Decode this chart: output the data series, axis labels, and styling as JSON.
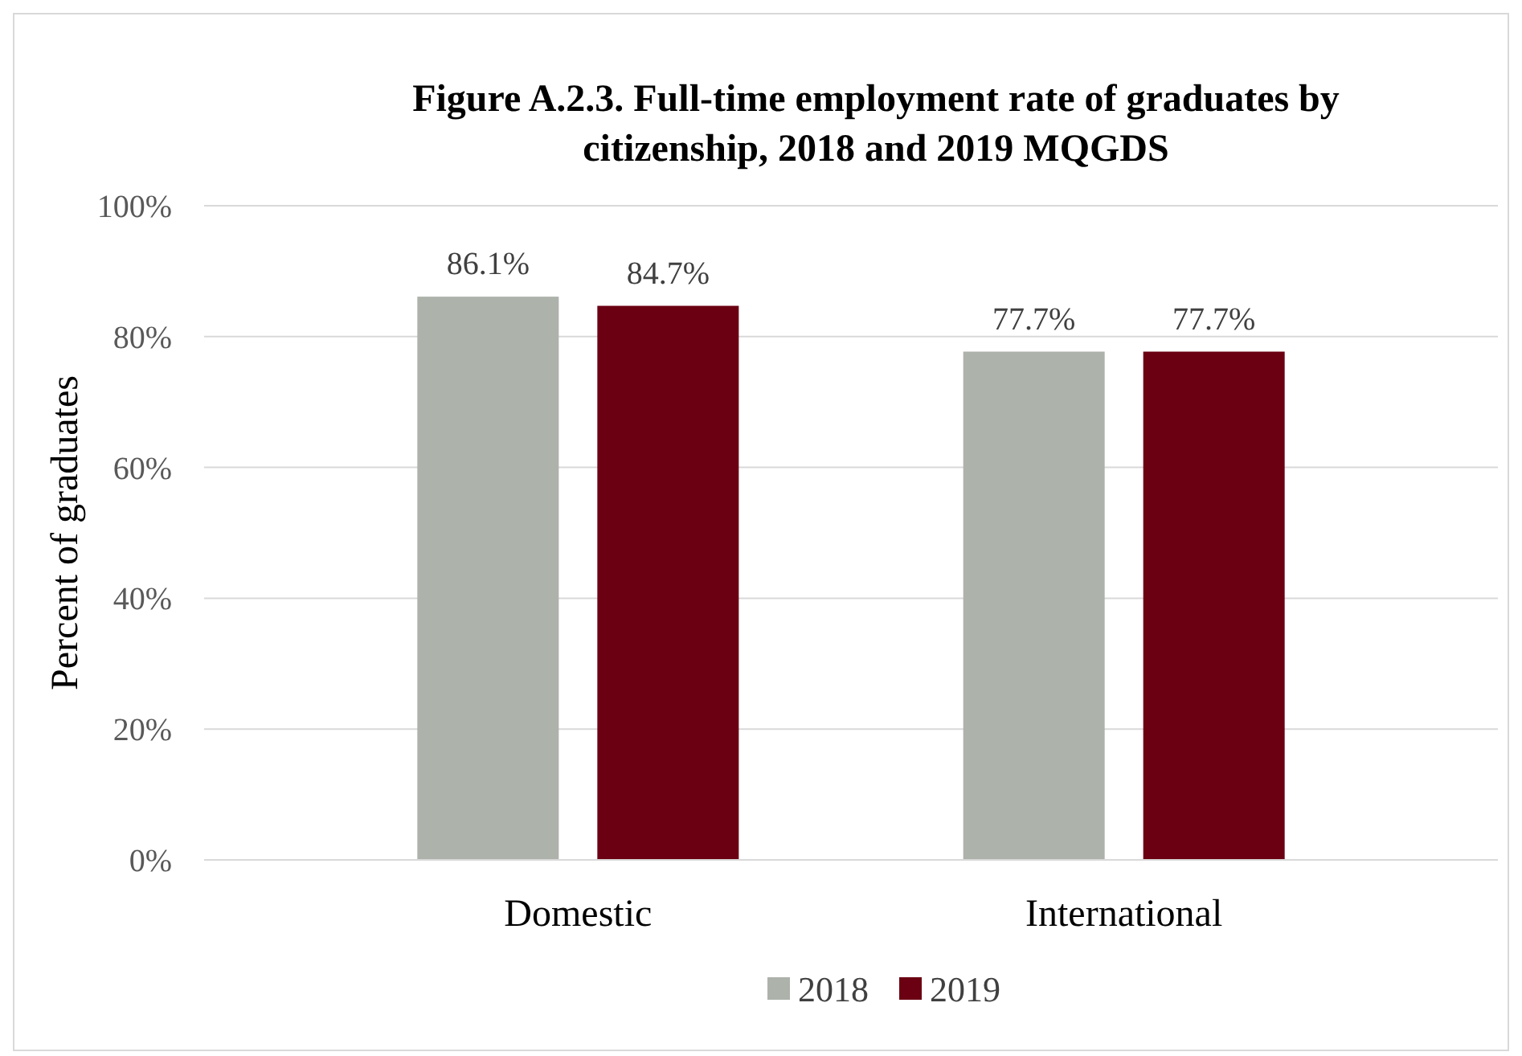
{
  "chart_data": {
    "type": "bar",
    "title": "Figure A.2.3. Full-time employment rate of graduates by citizenship,  2018 and 2019 MQGDS",
    "ylabel": "Percent of graduates",
    "categories": [
      "Domestic",
      "International"
    ],
    "series": [
      {
        "name": "2018",
        "color": "#adb2ab",
        "values": [
          86.1,
          77.7
        ],
        "value_labels": [
          "86.1%",
          "77.7%"
        ]
      },
      {
        "name": "2019",
        "color": "#6b0012",
        "values": [
          84.7,
          77.7
        ],
        "value_labels": [
          "84.7%",
          "77.7%"
        ]
      }
    ],
    "ylim": [
      0,
      100
    ],
    "yticks": [
      {
        "value": 0,
        "label": "0%"
      },
      {
        "value": 20,
        "label": "20%"
      },
      {
        "value": 40,
        "label": "40%"
      },
      {
        "value": 60,
        "label": "60%"
      },
      {
        "value": 80,
        "label": "80%"
      },
      {
        "value": 100,
        "label": "100%"
      }
    ],
    "grid": "y",
    "legend": "bottom"
  }
}
